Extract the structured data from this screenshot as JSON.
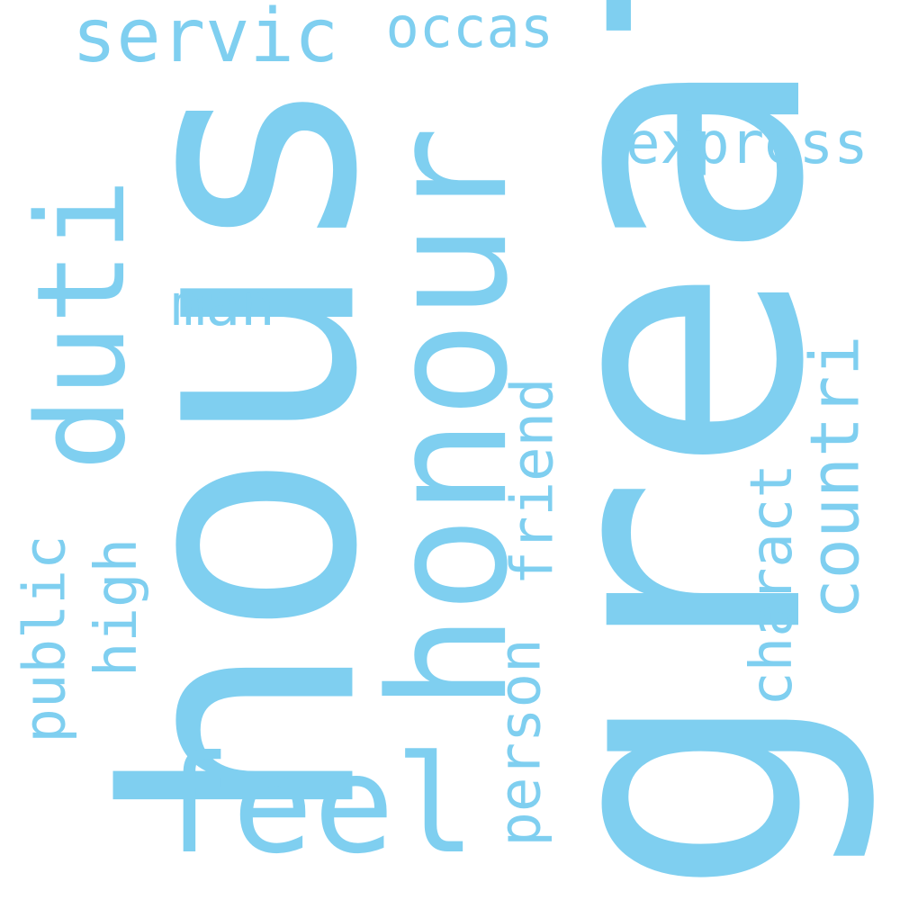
{
  "color": "#7fcff0",
  "background": "#ffffff",
  "words": [
    {
      "text": "great"
    },
    {
      "text": "hous"
    },
    {
      "text": "honour"
    },
    {
      "text": "feel"
    },
    {
      "text": "duti"
    },
    {
      "text": "servic"
    },
    {
      "text": "occas"
    },
    {
      "text": "express"
    },
    {
      "text": "man"
    },
    {
      "text": "countri"
    },
    {
      "text": "charact"
    },
    {
      "text": "friend"
    },
    {
      "text": "person"
    },
    {
      "text": "high"
    },
    {
      "text": "public"
    }
  ]
}
